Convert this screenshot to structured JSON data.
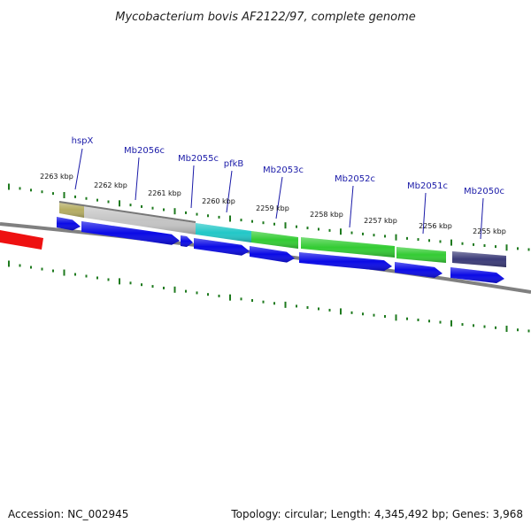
{
  "title": "Mycobacterium bovis AF2122/97, complete genome",
  "footer": {
    "accession": "Accession: NC_002945",
    "stats": "Topology: circular; Length: 4,345,492 bp; Genes: 3,968"
  },
  "ruler": {
    "labels": [
      "2263 kbp",
      "2262 kbp",
      "2261 kbp",
      "2260 kbp",
      "2259 kbp",
      "2258 kbp",
      "2257 kbp",
      "2256 kbp",
      "2255 kbp"
    ]
  },
  "genes": [
    {
      "name": "hspX",
      "color": "#b5ad62"
    },
    {
      "name": "Mb2056c",
      "color": "#c4c4c4"
    },
    {
      "name": "Mb2055c",
      "color": "#c4c4c4"
    },
    {
      "name": "pfkB",
      "color": "#22c7c7"
    },
    {
      "name": "Mb2053c",
      "color": "#33cc33"
    },
    {
      "name": "Mb2052c",
      "color": "#33cc33"
    },
    {
      "name": "Mb2051c",
      "color": "#33cc33"
    },
    {
      "name": "Mb2050c",
      "color": "#3b3b78"
    }
  ],
  "colors": {
    "cds": "#0a0ae6",
    "backbone": "#808080",
    "ticks": "#1e7a1e",
    "neighbor_feature": "#ee1111"
  }
}
